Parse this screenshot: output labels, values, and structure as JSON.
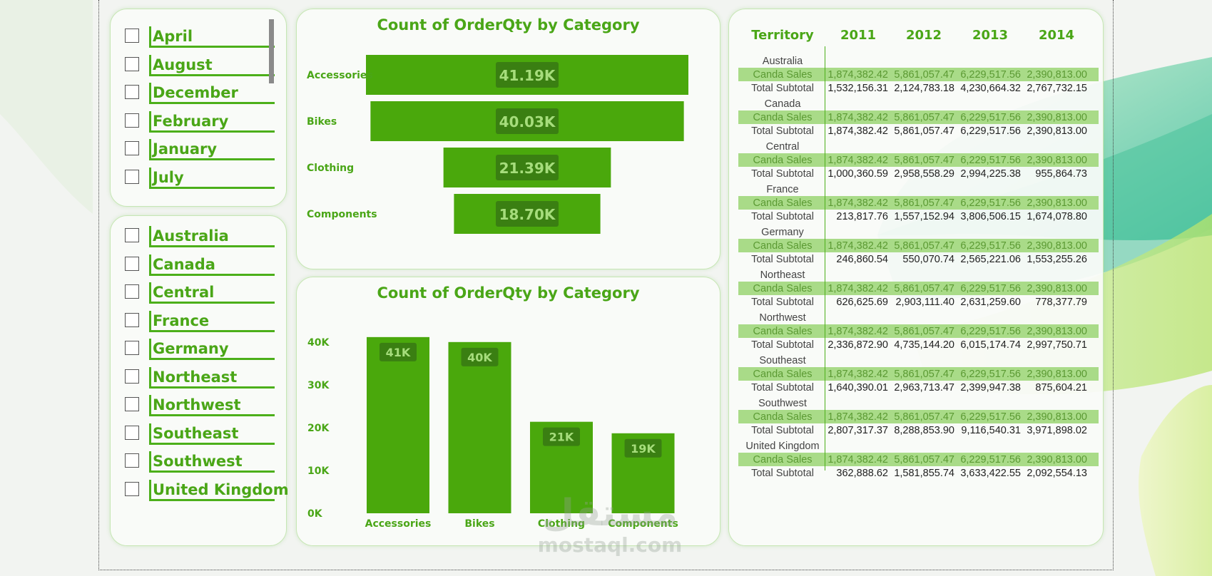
{
  "slicers": {
    "months": [
      "April",
      "August",
      "December",
      "February",
      "January",
      "July"
    ],
    "territories": [
      "Australia",
      "Canada",
      "Central",
      "France",
      "Germany",
      "Northeast",
      "Northwest",
      "Southeast",
      "Southwest",
      "United Kingdom"
    ]
  },
  "colors": {
    "accent": "#4caf1a",
    "bar": "#4aa80c",
    "label_bg": "#3a7f12",
    "band": "#a9db88"
  },
  "chart_data": [
    {
      "type": "funnel",
      "title": "Count of OrderQty by Category",
      "categories": [
        "Accessories",
        "Bikes",
        "Clothing",
        "Components"
      ],
      "values": [
        41190,
        40030,
        21390,
        18700
      ],
      "data_labels": [
        "41.19K",
        "40.03K",
        "21.39K",
        "18.70K"
      ]
    },
    {
      "type": "bar",
      "title": "Count of OrderQty by Category",
      "categories": [
        "Accessories",
        "Bikes",
        "Clothing",
        "Components"
      ],
      "values": [
        41190,
        40030,
        21390,
        18700
      ],
      "data_labels": [
        "41K",
        "40K",
        "21K",
        "19K"
      ],
      "yticks": [
        "40K",
        "30K",
        "20K",
        "10K",
        "0K"
      ],
      "ylim": [
        0,
        40000
      ],
      "grid": false
    }
  ],
  "matrix": {
    "headers": [
      "Territory",
      "2011",
      "2012",
      "2013",
      "2014"
    ],
    "groups": [
      {
        "name": "Australia",
        "row_label": "Canda Sales",
        "row_values": [
          "1,874,382.42",
          "5,861,057.47",
          "6,229,517.56",
          "2,390,813.00"
        ],
        "total_label": "Total Subtotal",
        "total_values": [
          "1,532,156.31",
          "2,124,783.18",
          "4,230,664.32",
          "2,767,732.15"
        ]
      },
      {
        "name": "Canada",
        "row_label": "Canda Sales",
        "row_values": [
          "1,874,382.42",
          "5,861,057.47",
          "6,229,517.56",
          "2,390,813.00"
        ],
        "total_label": "Total Subtotal",
        "total_values": [
          "1,874,382.42",
          "5,861,057.47",
          "6,229,517.56",
          "2,390,813.00"
        ]
      },
      {
        "name": "Central",
        "row_label": "Canda Sales",
        "row_values": [
          "1,874,382.42",
          "5,861,057.47",
          "6,229,517.56",
          "2,390,813.00"
        ],
        "total_label": "Total Subtotal",
        "total_values": [
          "1,000,360.59",
          "2,958,558.29",
          "2,994,225.38",
          "955,864.73"
        ]
      },
      {
        "name": "France",
        "row_label": "Canda Sales",
        "row_values": [
          "1,874,382.42",
          "5,861,057.47",
          "6,229,517.56",
          "2,390,813.00"
        ],
        "total_label": "Total Subtotal",
        "total_values": [
          "213,817.76",
          "1,557,152.94",
          "3,806,506.15",
          "1,674,078.80"
        ]
      },
      {
        "name": "Germany",
        "row_label": "Canda Sales",
        "row_values": [
          "1,874,382.42",
          "5,861,057.47",
          "6,229,517.56",
          "2,390,813.00"
        ],
        "total_label": "Total Subtotal",
        "total_values": [
          "246,860.54",
          "550,070.74",
          "2,565,221.06",
          "1,553,255.26"
        ]
      },
      {
        "name": "Northeast",
        "row_label": "Canda Sales",
        "row_values": [
          "1,874,382.42",
          "5,861,057.47",
          "6,229,517.56",
          "2,390,813.00"
        ],
        "total_label": "Total Subtotal",
        "total_values": [
          "626,625.69",
          "2,903,111.40",
          "2,631,259.60",
          "778,377.79"
        ]
      },
      {
        "name": "Northwest",
        "row_label": "Canda Sales",
        "row_values": [
          "1,874,382.42",
          "5,861,057.47",
          "6,229,517.56",
          "2,390,813.00"
        ],
        "total_label": "Total Subtotal",
        "total_values": [
          "2,336,872.90",
          "4,735,144.20",
          "6,015,174.74",
          "2,997,750.71"
        ]
      },
      {
        "name": "Southeast",
        "row_label": "Canda Sales",
        "row_values": [
          "1,874,382.42",
          "5,861,057.47",
          "6,229,517.56",
          "2,390,813.00"
        ],
        "total_label": "Total Subtotal",
        "total_values": [
          "1,640,390.01",
          "2,963,713.47",
          "2,399,947.38",
          "875,604.21"
        ]
      },
      {
        "name": "Southwest",
        "row_label": "Canda Sales",
        "row_values": [
          "1,874,382.42",
          "5,861,057.47",
          "6,229,517.56",
          "2,390,813.00"
        ],
        "total_label": "Total Subtotal",
        "total_values": [
          "2,807,317.37",
          "8,288,853.90",
          "9,116,540.31",
          "3,971,898.02"
        ]
      },
      {
        "name": "United Kingdom",
        "row_label": "Canda Sales",
        "row_values": [
          "1,874,382.42",
          "5,861,057.47",
          "6,229,517.56",
          "2,390,813.00"
        ],
        "total_label": "Total Subtotal",
        "total_values": [
          "362,888.62",
          "1,581,855.74",
          "3,633,422.55",
          "2,092,554.13"
        ]
      }
    ]
  },
  "watermark": {
    "arabic": "مستقل",
    "latin": "mostaql.com"
  }
}
